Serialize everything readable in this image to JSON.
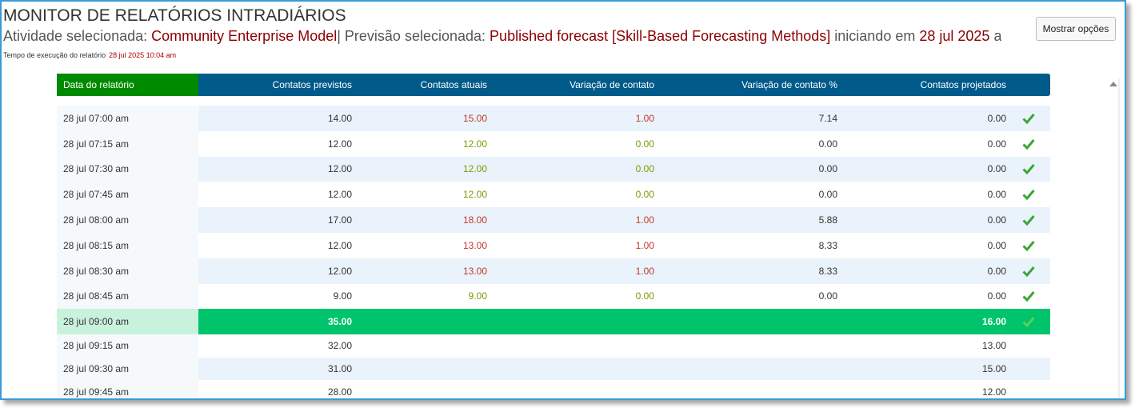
{
  "header": {
    "title": "MONITOR DE RELATÓRIOS INTRADIÁRIOS",
    "subtitle": {
      "activity_label": "Atividade selecionada:",
      "activity": "Community Enterprise Model",
      "forecast_label": "| Previsão selecionada:",
      "forecast": "Published forecast [Skill-Based Forecasting Methods]",
      "start_label": "iniciando em",
      "start_date": "28 jul 2025",
      "tail": "at"
    },
    "run_time_label": "Tempo de execução do relatório",
    "run_time": "28 jul 2025 10:04 am",
    "options_button": "Mostrar opções"
  },
  "table": {
    "columns": [
      "Data do relatório",
      "Contatos previstos",
      "Contatos atuais",
      "Variação de contato",
      "Variação de contato %",
      "Contatos projetados"
    ],
    "highlight_row": 8,
    "rows": [
      [
        "28 jul 07:00 am",
        "14.00",
        "15.00",
        "1.00",
        "7.14",
        "0.00"
      ],
      [
        "28 jul 07:15 am",
        "12.00",
        "12.00",
        "0.00",
        "0.00",
        "0.00"
      ],
      [
        "28 jul 07:30 am",
        "12.00",
        "12.00",
        "0.00",
        "0.00",
        "0.00"
      ],
      [
        "28 jul 07:45 am",
        "12.00",
        "12.00",
        "0.00",
        "0.00",
        "0.00"
      ],
      [
        "28 jul 08:00 am",
        "17.00",
        "18.00",
        "1.00",
        "5.88",
        "0.00"
      ],
      [
        "28 jul 08:15 am",
        "12.00",
        "13.00",
        "1.00",
        "8.33",
        "0.00"
      ],
      [
        "28 jul 08:30 am",
        "12.00",
        "13.00",
        "1.00",
        "8.33",
        "0.00"
      ],
      [
        "28 jul 08:45 am",
        "9.00",
        "9.00",
        "0.00",
        "0.00",
        "0.00"
      ],
      [
        "28 jul 09:00 am",
        "35.00",
        null,
        null,
        null,
        "16.00"
      ],
      [
        "28 jul 09:15 am",
        "32.00",
        null,
        null,
        null,
        "13.00"
      ],
      [
        "28 jul 09:30 am",
        "31.00",
        null,
        null,
        null,
        "15.00"
      ],
      [
        "28 jul 09:45 am",
        "28.00",
        null,
        null,
        null,
        "12.00"
      ]
    ]
  }
}
